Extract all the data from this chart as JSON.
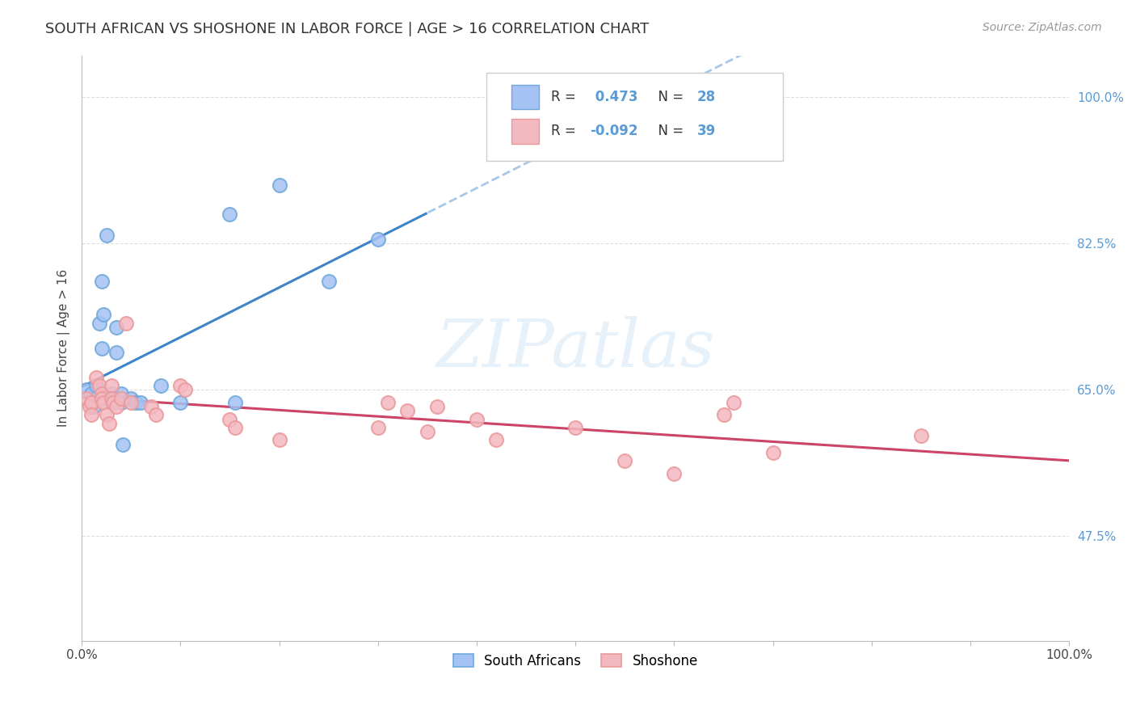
{
  "title": "SOUTH AFRICAN VS SHOSHONE IN LABOR FORCE | AGE > 16 CORRELATION CHART",
  "source": "Source: ZipAtlas.com",
  "ylabel": "In Labor Force | Age > 16",
  "watermark_text": "ZIPatlas",
  "legend_sa_r": "0.473",
  "legend_sa_n": "28",
  "legend_sh_r": "-0.092",
  "legend_sh_n": "39",
  "sa_color": "#a4c2f4",
  "sh_color": "#f4b8c1",
  "sa_edge": "#6fa8dc",
  "sh_edge": "#ea9999",
  "trend_sa_color": "#3d85c8",
  "trend_sh_color": "#cc4466",
  "sa_points": [
    [
      0.5,
      65.0
    ],
    [
      1.0,
      64.5
    ],
    [
      1.2,
      63.0
    ],
    [
      1.5,
      65.5
    ],
    [
      1.8,
      73.0
    ],
    [
      2.0,
      70.0
    ],
    [
      2.0,
      78.0
    ],
    [
      2.2,
      74.0
    ],
    [
      2.5,
      83.5
    ],
    [
      3.0,
      64.5
    ],
    [
      3.0,
      64.0
    ],
    [
      3.0,
      63.5
    ],
    [
      3.2,
      63.5
    ],
    [
      3.5,
      72.5
    ],
    [
      3.5,
      69.5
    ],
    [
      4.0,
      64.5
    ],
    [
      4.0,
      63.5
    ],
    [
      4.2,
      58.5
    ],
    [
      5.0,
      64.0
    ],
    [
      5.5,
      63.5
    ],
    [
      6.0,
      63.5
    ],
    [
      8.0,
      65.5
    ],
    [
      10.0,
      63.5
    ],
    [
      15.0,
      86.0
    ],
    [
      15.5,
      63.5
    ],
    [
      20.0,
      89.5
    ],
    [
      25.0,
      78.0
    ],
    [
      30.0,
      83.0
    ]
  ],
  "sh_points": [
    [
      0.5,
      64.0
    ],
    [
      0.8,
      63.0
    ],
    [
      1.0,
      63.5
    ],
    [
      1.0,
      62.0
    ],
    [
      1.5,
      66.5
    ],
    [
      1.8,
      65.5
    ],
    [
      2.0,
      64.5
    ],
    [
      2.0,
      64.0
    ],
    [
      2.2,
      63.5
    ],
    [
      2.5,
      62.0
    ],
    [
      2.8,
      61.0
    ],
    [
      3.0,
      65.5
    ],
    [
      3.0,
      64.0
    ],
    [
      3.2,
      63.5
    ],
    [
      3.5,
      63.0
    ],
    [
      4.0,
      64.0
    ],
    [
      4.5,
      73.0
    ],
    [
      5.0,
      63.5
    ],
    [
      7.0,
      63.0
    ],
    [
      7.5,
      62.0
    ],
    [
      10.0,
      65.5
    ],
    [
      10.5,
      65.0
    ],
    [
      15.0,
      61.5
    ],
    [
      15.5,
      60.5
    ],
    [
      20.0,
      59.0
    ],
    [
      30.0,
      60.5
    ],
    [
      31.0,
      63.5
    ],
    [
      33.0,
      62.5
    ],
    [
      35.0,
      60.0
    ],
    [
      36.0,
      63.0
    ],
    [
      40.0,
      61.5
    ],
    [
      42.0,
      59.0
    ],
    [
      50.0,
      60.5
    ],
    [
      55.0,
      56.5
    ],
    [
      60.0,
      55.0
    ],
    [
      65.0,
      62.0
    ],
    [
      66.0,
      63.5
    ],
    [
      70.0,
      57.5
    ],
    [
      85.0,
      59.5
    ]
  ],
  "xlim": [
    0.0,
    100.0
  ],
  "ylim": [
    35.0,
    105.0
  ],
  "yticks": [
    100.0,
    82.5,
    65.0,
    47.5
  ],
  "xticks": [
    0,
    10,
    20,
    30,
    40,
    50,
    60,
    70,
    80,
    90,
    100
  ],
  "background_color": "#ffffff",
  "grid_color": "#dddddd"
}
